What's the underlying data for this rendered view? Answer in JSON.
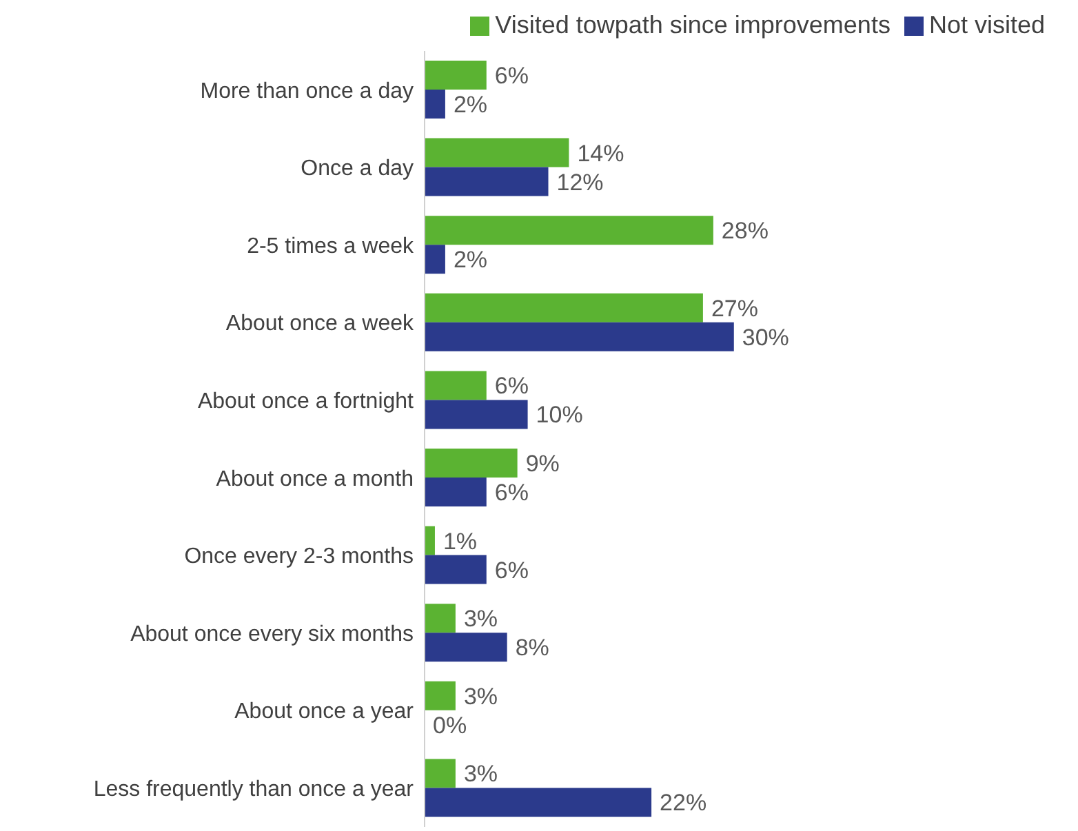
{
  "chart_data": {
    "type": "bar",
    "orientation": "horizontal",
    "categories": [
      "More than once a day",
      "Once a day",
      "2-5 times a week",
      "About once a week",
      "About once a fortnight",
      "About once a month",
      "Once every 2-3 months",
      "About once every six months",
      "About once a year",
      "Less frequently than once a year"
    ],
    "series": [
      {
        "name": "Visited towpath since improvements",
        "color": "#5bb332",
        "values": [
          6,
          14,
          28,
          27,
          6,
          9,
          1,
          3,
          3,
          3
        ],
        "value_labels": [
          "6%",
          "14%",
          "28%",
          "27%",
          "6%",
          "9%",
          "1%",
          "3%",
          "3%",
          "3%"
        ]
      },
      {
        "name": "Not visited",
        "color": "#2b3a8c",
        "values": [
          2,
          12,
          2,
          30,
          10,
          6,
          6,
          8,
          0,
          22
        ],
        "value_labels": [
          "2%",
          "12%",
          "2%",
          "30%",
          "10%",
          "6%",
          "6%",
          "8%",
          "0%",
          "22%"
        ]
      }
    ],
    "legend": "top right",
    "grid": false
  }
}
